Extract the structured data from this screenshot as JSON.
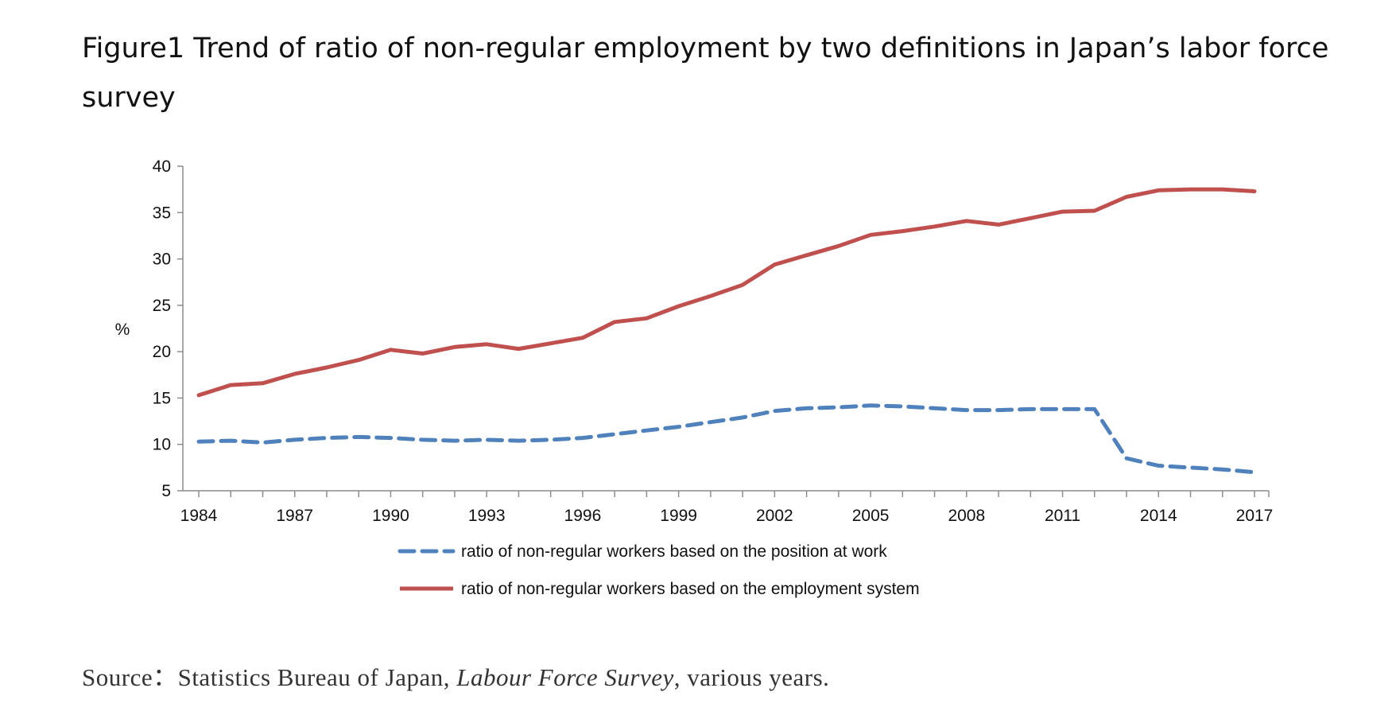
{
  "figure": {
    "title": "Figure1 Trend of ratio of non-regular employment by two definitions in Japan’s labor force survey"
  },
  "source": {
    "prefix": "Source：Statistics Bureau of Japan, ",
    "publication": "Labour Force Survey",
    "suffix": ", various years."
  },
  "chart_data": {
    "type": "line",
    "title": "",
    "xlabel": "",
    "ylabel": "%",
    "ylim": [
      5,
      40
    ],
    "yticks": [
      5,
      10,
      15,
      20,
      25,
      30,
      35,
      40
    ],
    "xlim": [
      1984,
      2017
    ],
    "xticks": [
      "1984",
      "1987",
      "1990",
      "1993",
      "1996",
      "1999",
      "2002",
      "2005",
      "2008",
      "2011",
      "2014",
      "2017"
    ],
    "grid": false,
    "legend_position": "bottom",
    "x": [
      1984,
      1985,
      1986,
      1987,
      1988,
      1989,
      1990,
      1991,
      1992,
      1993,
      1994,
      1995,
      1996,
      1997,
      1998,
      1999,
      2000,
      2001,
      2002,
      2003,
      2004,
      2005,
      2006,
      2007,
      2008,
      2009,
      2010,
      2011,
      2012,
      2013,
      2014,
      2015,
      2016,
      2017
    ],
    "series": [
      {
        "name": "ratio of non-regular workers based on the position at work",
        "color": "#4f81bd",
        "style": "dashed",
        "values": [
          10.3,
          10.4,
          10.2,
          10.5,
          10.7,
          10.8,
          10.7,
          10.5,
          10.4,
          10.5,
          10.4,
          10.5,
          10.7,
          11.1,
          11.5,
          11.9,
          12.4,
          12.9,
          13.6,
          13.9,
          14.0,
          14.2,
          14.1,
          13.9,
          13.7,
          13.7,
          13.8,
          13.8,
          13.8,
          8.5,
          7.7,
          7.5,
          7.3,
          7.0
        ]
      },
      {
        "name": "ratio of non-regular workers based on the employment system",
        "color": "#c0504d",
        "style": "solid",
        "values": [
          15.3,
          16.4,
          16.6,
          17.6,
          18.3,
          19.1,
          20.2,
          19.8,
          20.5,
          20.8,
          20.3,
          20.9,
          21.5,
          23.2,
          23.6,
          24.9,
          26.0,
          27.2,
          29.4,
          30.4,
          31.4,
          32.6,
          33.0,
          33.5,
          34.1,
          33.7,
          34.4,
          35.1,
          35.2,
          36.7,
          37.4,
          37.5,
          37.5,
          37.3
        ]
      }
    ]
  }
}
